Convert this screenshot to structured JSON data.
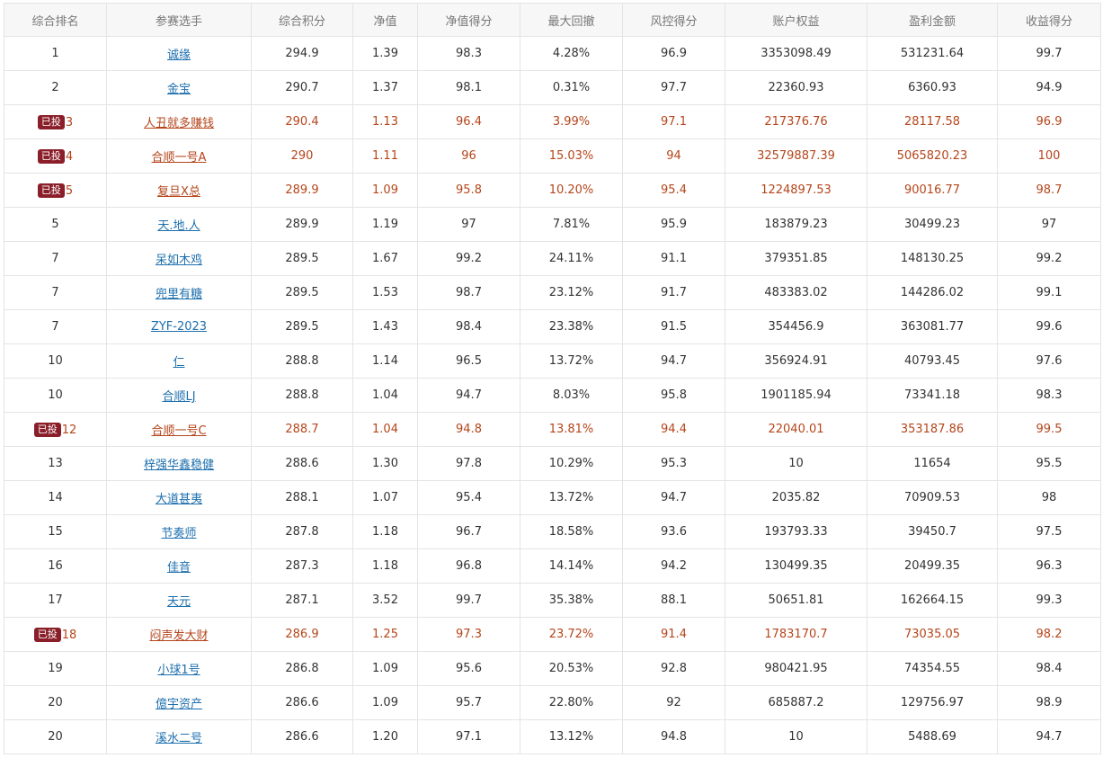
{
  "table": {
    "headers": [
      "综合排名",
      "参赛选手",
      "综合积分",
      "净值",
      "净值得分",
      "最大回撤",
      "风控得分",
      "账户权益",
      "盈利金额",
      "收益得分"
    ],
    "rows": [
      {
        "badge": "",
        "highlight": false,
        "cells": [
          "1",
          "诚缘",
          "294.9",
          "1.39",
          "98.3",
          "4.28%",
          "96.9",
          "3353098.49",
          "531231.64",
          "99.7"
        ]
      },
      {
        "badge": "",
        "highlight": false,
        "cells": [
          "2",
          "金宝",
          "290.7",
          "1.37",
          "98.1",
          "0.31%",
          "97.7",
          "22360.93",
          "6360.93",
          "94.9"
        ]
      },
      {
        "badge": "已投",
        "highlight": true,
        "cells": [
          "3",
          "人丑就多赚钱",
          "290.4",
          "1.13",
          "96.4",
          "3.99%",
          "97.1",
          "217376.76",
          "28117.58",
          "96.9"
        ]
      },
      {
        "badge": "已投",
        "highlight": true,
        "cells": [
          "4",
          "合顺一号A",
          "290",
          "1.11",
          "96",
          "15.03%",
          "94",
          "32579887.39",
          "5065820.23",
          "100"
        ]
      },
      {
        "badge": "已投",
        "highlight": true,
        "cells": [
          "5",
          "复旦X总",
          "289.9",
          "1.09",
          "95.8",
          "10.20%",
          "95.4",
          "1224897.53",
          "90016.77",
          "98.7"
        ]
      },
      {
        "badge": "",
        "highlight": false,
        "cells": [
          "5",
          "天.地.人",
          "289.9",
          "1.19",
          "97",
          "7.81%",
          "95.9",
          "183879.23",
          "30499.23",
          "97"
        ]
      },
      {
        "badge": "",
        "highlight": false,
        "cells": [
          "7",
          "呆如木鸡",
          "289.5",
          "1.67",
          "99.2",
          "24.11%",
          "91.1",
          "379351.85",
          "148130.25",
          "99.2"
        ]
      },
      {
        "badge": "",
        "highlight": false,
        "cells": [
          "7",
          "兜里有糖",
          "289.5",
          "1.53",
          "98.7",
          "23.12%",
          "91.7",
          "483383.02",
          "144286.02",
          "99.1"
        ]
      },
      {
        "badge": "",
        "highlight": false,
        "cells": [
          "7",
          "ZYF-2023",
          "289.5",
          "1.43",
          "98.4",
          "23.38%",
          "91.5",
          "354456.9",
          "363081.77",
          "99.6"
        ]
      },
      {
        "badge": "",
        "highlight": false,
        "cells": [
          "10",
          "仁",
          "288.8",
          "1.14",
          "96.5",
          "13.72%",
          "94.7",
          "356924.91",
          "40793.45",
          "97.6"
        ]
      },
      {
        "badge": "",
        "highlight": false,
        "cells": [
          "10",
          "合顺LJ",
          "288.8",
          "1.04",
          "94.7",
          "8.03%",
          "95.8",
          "1901185.94",
          "73341.18",
          "98.3"
        ]
      },
      {
        "badge": "已投",
        "highlight": true,
        "cells": [
          "12",
          "合顺一号C",
          "288.7",
          "1.04",
          "94.8",
          "13.81%",
          "94.4",
          "22040.01",
          "353187.86",
          "99.5"
        ]
      },
      {
        "badge": "",
        "highlight": false,
        "cells": [
          "13",
          "梓强华鑫稳健",
          "288.6",
          "1.30",
          "97.8",
          "10.29%",
          "95.3",
          "10",
          "11654",
          "95.5"
        ]
      },
      {
        "badge": "",
        "highlight": false,
        "cells": [
          "14",
          "大道甚夷",
          "288.1",
          "1.07",
          "95.4",
          "13.72%",
          "94.7",
          "2035.82",
          "70909.53",
          "98"
        ]
      },
      {
        "badge": "",
        "highlight": false,
        "cells": [
          "15",
          "节奏师",
          "287.8",
          "1.18",
          "96.7",
          "18.58%",
          "93.6",
          "193793.33",
          "39450.7",
          "97.5"
        ]
      },
      {
        "badge": "",
        "highlight": false,
        "cells": [
          "16",
          "佳音",
          "287.3",
          "1.18",
          "96.8",
          "14.14%",
          "94.2",
          "130499.35",
          "20499.35",
          "96.3"
        ]
      },
      {
        "badge": "",
        "highlight": false,
        "cells": [
          "17",
          "天元",
          "287.1",
          "3.52",
          "99.7",
          "35.38%",
          "88.1",
          "50651.81",
          "162664.15",
          "99.3"
        ]
      },
      {
        "badge": "已投",
        "highlight": true,
        "cells": [
          "18",
          "闷声发大财",
          "286.9",
          "1.25",
          "97.3",
          "23.72%",
          "91.4",
          "1783170.7",
          "73035.05",
          "98.2"
        ]
      },
      {
        "badge": "",
        "highlight": false,
        "cells": [
          "19",
          "小球1号",
          "286.8",
          "1.09",
          "95.6",
          "20.53%",
          "92.8",
          "980421.95",
          "74354.55",
          "98.4"
        ]
      },
      {
        "badge": "",
        "highlight": false,
        "cells": [
          "20",
          "億宇资产",
          "286.6",
          "1.09",
          "95.7",
          "22.80%",
          "92",
          "685887.2",
          "129756.97",
          "98.9"
        ]
      },
      {
        "badge": "",
        "highlight": false,
        "cells": [
          "20",
          "溪水二号",
          "286.6",
          "1.20",
          "97.1",
          "13.12%",
          "94.8",
          "10",
          "5488.69",
          "94.7"
        ]
      }
    ]
  }
}
